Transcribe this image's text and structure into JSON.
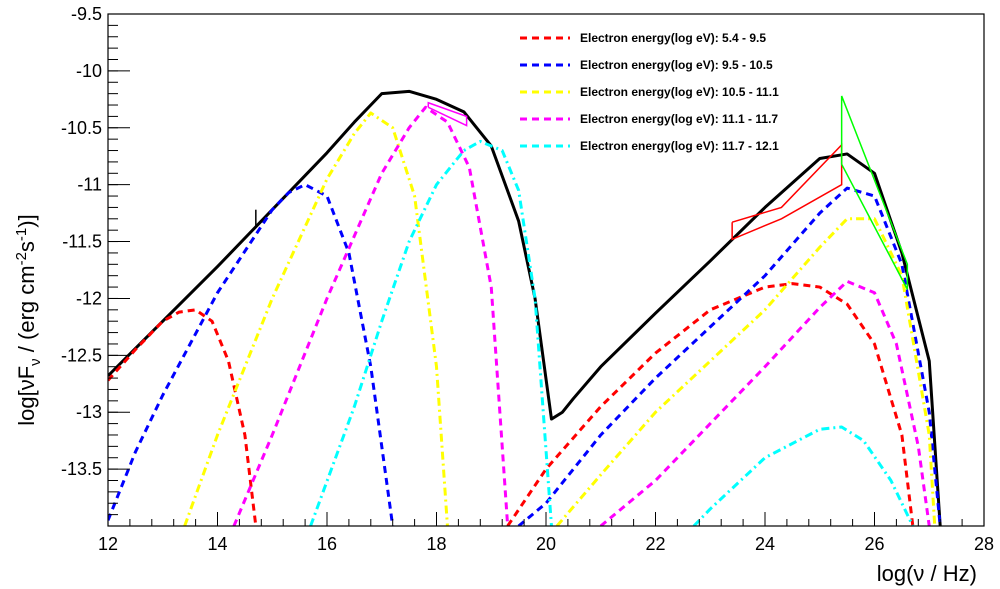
{
  "chart_data": {
    "type": "line",
    "xlabel": "log(ν / Hz)",
    "ylabel": "log[νF_ν / (erg cm^-2 s^-1)]",
    "xlim": [
      12,
      28
    ],
    "ylim": [
      -14,
      -9.5
    ],
    "x_ticks": [
      "12",
      "14",
      "16",
      "18",
      "20",
      "22",
      "24",
      "26",
      "28"
    ],
    "y_ticks": [
      "-9.5",
      "-10",
      "-10.5",
      "-11",
      "-11.5",
      "-12",
      "-12.5",
      "-13",
      "-13.5"
    ],
    "legend_position": "top-right",
    "legend": [
      {
        "label": "Electron energy(log eV): 5.4 - 9.5",
        "color": "#ff0000"
      },
      {
        "label": "Electron energy(log eV): 9.5 - 10.5",
        "color": "#0000ff"
      },
      {
        "label": "Electron energy(log eV): 10.5 - 11.1",
        "color": "#ffff00"
      },
      {
        "label": "Electron energy(log eV): 11.1 - 11.7",
        "color": "#ff00ff"
      },
      {
        "label": "Electron energy(log eV): 11.7 - 12.1",
        "color": "#00ffff"
      }
    ],
    "series": [
      {
        "color": "#000000",
        "style": "solid",
        "x": [
          12,
          13,
          14,
          15,
          16,
          16.5,
          17,
          17.5,
          18,
          18.5,
          19,
          19.5,
          19.8,
          20.1,
          20.3,
          20.5,
          21,
          22,
          23,
          24,
          25,
          25.5,
          26,
          26.5,
          27,
          27.2
        ],
        "y": [
          -12.68,
          -12.2,
          -11.72,
          -11.22,
          -10.72,
          -10.45,
          -10.2,
          -10.18,
          -10.25,
          -10.36,
          -10.66,
          -11.32,
          -12,
          -13.06,
          -13,
          -12.88,
          -12.6,
          -12.13,
          -11.67,
          -11.2,
          -10.77,
          -10.73,
          -10.9,
          -11.6,
          -12.55,
          -14
        ]
      },
      {
        "color": "#ff0000",
        "style": "dash",
        "x": [
          12,
          12.5,
          13,
          13.3,
          13.6,
          13.9,
          14.2,
          14.5,
          14.7
        ],
        "y": [
          -12.72,
          -12.45,
          -12.2,
          -12.12,
          -12.1,
          -12.2,
          -12.55,
          -13.2,
          -14
        ],
        "x2": [
          19.3,
          20,
          21,
          22,
          23,
          24,
          24.5,
          25,
          25.5,
          26,
          26.5,
          26.7
        ],
        "y2": [
          -14,
          -13.5,
          -12.95,
          -12.48,
          -12.1,
          -11.9,
          -11.87,
          -11.9,
          -12.05,
          -12.4,
          -13.2,
          -14
        ]
      },
      {
        "color": "#0000ff",
        "style": "dash",
        "x": [
          12,
          12.5,
          13,
          14,
          15,
          15.3,
          15.6,
          16,
          16.4,
          16.8,
          17.2
        ],
        "y": [
          -13.95,
          -13.35,
          -12.85,
          -11.95,
          -11.22,
          -11.07,
          -11,
          -11.1,
          -11.6,
          -12.6,
          -14
        ],
        "x2": [
          19.5,
          20,
          21,
          22,
          23,
          24,
          25,
          25.5,
          26,
          26.5,
          27,
          27.2
        ],
        "y2": [
          -14,
          -13.8,
          -13.2,
          -12.7,
          -12.25,
          -11.8,
          -11.25,
          -11.03,
          -11.1,
          -11.7,
          -13,
          -14
        ]
      },
      {
        "color": "#ffff00",
        "style": "dashdot",
        "x": [
          13.4,
          14,
          15,
          16,
          16.5,
          16.8,
          17.2,
          17.6,
          18,
          18.2
        ],
        "y": [
          -14,
          -13.2,
          -12,
          -10.95,
          -10.55,
          -10.37,
          -10.5,
          -11.1,
          -12.6,
          -14
        ],
        "x2": [
          20.2,
          21,
          22,
          23,
          24,
          25,
          25.5,
          26,
          26.5,
          27,
          27.1
        ],
        "y2": [
          -14,
          -13.55,
          -13,
          -12.55,
          -12.1,
          -11.55,
          -11.3,
          -11.3,
          -11.8,
          -13.2,
          -14
        ]
      },
      {
        "color": "#ff00ff",
        "style": "dash",
        "x": [
          14.3,
          15,
          16,
          17,
          17.5,
          17.8,
          18.2,
          18.6,
          19,
          19.3
        ],
        "y": [
          -14,
          -13.2,
          -12,
          -10.9,
          -10.5,
          -10.32,
          -10.45,
          -10.85,
          -11.9,
          -14
        ],
        "x2": [
          21,
          22,
          23,
          24,
          25,
          25.5,
          26,
          26.4,
          26.8,
          27
        ],
        "y2": [
          -14,
          -13.6,
          -13.1,
          -12.6,
          -12.08,
          -11.85,
          -11.95,
          -12.4,
          -13.3,
          -14
        ]
      },
      {
        "color": "#00ffff",
        "style": "dashdot",
        "x": [
          15.7,
          16.5,
          17,
          17.5,
          18,
          18.5,
          18.8,
          19.2,
          19.5,
          19.8,
          20.1
        ],
        "y": [
          -14,
          -12.95,
          -12.2,
          -11.5,
          -11,
          -10.7,
          -10.62,
          -10.7,
          -11.05,
          -12,
          -14
        ],
        "x2": [
          22.7,
          23,
          24,
          25,
          25.4,
          25.8,
          26.3,
          26.7
        ],
        "y2": [
          -14,
          -13.85,
          -13.4,
          -13.15,
          -13.13,
          -13.25,
          -13.6,
          -14
        ]
      }
    ],
    "observations": [
      {
        "color": "#ff00ff",
        "kind": "bowtie",
        "x": [
          17.85,
          18.55,
          18.55,
          17.85,
          17.85
        ],
        "y": [
          -10.32,
          -10.48,
          -10.4,
          -10.28,
          -10.32
        ]
      },
      {
        "color": "#ff0000",
        "kind": "bowtie",
        "x": [
          23.4,
          24.3,
          25.4,
          25.4,
          24.3,
          23.4,
          23.4
        ],
        "y": [
          -11.33,
          -11.2,
          -10.65,
          -11,
          -11.3,
          -11.48,
          -11.33
        ]
      },
      {
        "color": "#00ff00",
        "kind": "bowtie",
        "x": [
          25.4,
          25.4,
          26.6,
          26.6,
          25.4
        ],
        "y": [
          -10.22,
          -10.82,
          -11.92,
          -11.7,
          -10.22
        ]
      },
      {
        "color": "#000000",
        "kind": "errorbar",
        "x": [
          14.7,
          14.7
        ],
        "y": [
          -11.22,
          -11.38
        ]
      }
    ]
  }
}
